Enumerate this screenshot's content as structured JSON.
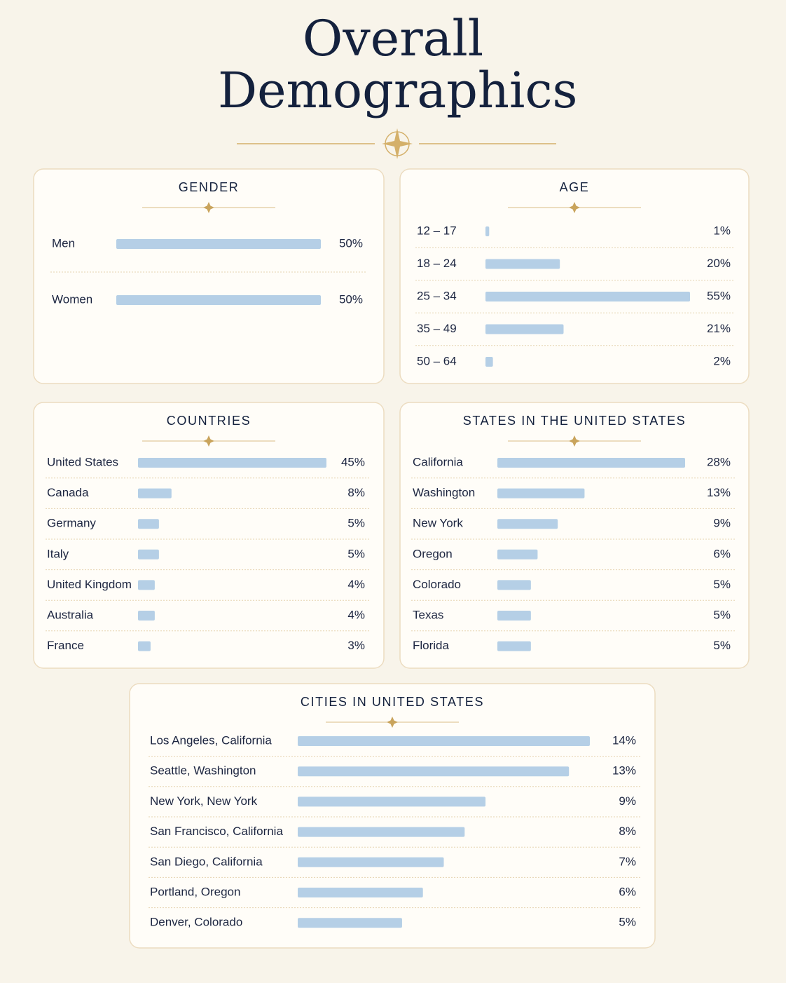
{
  "title": "Overall Demographics",
  "chart_data": [
    {
      "type": "bar",
      "title": "GENDER",
      "color": "#b5cfe6",
      "categories": [
        "Men",
        "Women"
      ],
      "values": [
        50,
        50
      ],
      "value_labels": [
        "50%",
        "50%"
      ]
    },
    {
      "type": "bar",
      "title": "AGE",
      "color": "#b5cfe6",
      "categories": [
        "12 – 17",
        "18 – 24",
        "25 – 34",
        "35 – 49",
        "50 – 64"
      ],
      "values": [
        1,
        20,
        55,
        21,
        2
      ],
      "value_labels": [
        "1%",
        "20%",
        "55%",
        "21%",
        "2%"
      ]
    },
    {
      "type": "bar",
      "title": "COUNTRIES",
      "color": "#b5cfe6",
      "categories": [
        "United States",
        "Canada",
        "Germany",
        "Italy",
        "United Kingdom",
        "Australia",
        "France"
      ],
      "values": [
        45,
        8,
        5,
        5,
        4,
        4,
        3
      ],
      "value_labels": [
        "45%",
        "8%",
        "5%",
        "5%",
        "4%",
        "4%",
        "3%"
      ]
    },
    {
      "type": "bar",
      "title": "STATES IN THE UNITED STATES",
      "color": "#b5cfe6",
      "categories": [
        "California",
        "Washington",
        "New York",
        "Oregon",
        "Colorado",
        "Texas",
        "Florida"
      ],
      "values": [
        28,
        13,
        9,
        6,
        5,
        5,
        5
      ],
      "value_labels": [
        "28%",
        "13%",
        "9%",
        "6%",
        "5%",
        "5%",
        "5%"
      ]
    },
    {
      "type": "bar",
      "title": "CITIES IN UNITED STATES",
      "color": "#b5cfe6",
      "categories": [
        "Los Angeles, California",
        "Seattle, Washington",
        "New York, New York",
        "San Francisco, California",
        "San Diego, California",
        "Portland, Oregon",
        "Denver, Colorado"
      ],
      "values": [
        14,
        13,
        9,
        8,
        7,
        6,
        5
      ],
      "value_labels": [
        "14%",
        "13%",
        "9%",
        "8%",
        "7%",
        "6%",
        "5%"
      ]
    }
  ]
}
